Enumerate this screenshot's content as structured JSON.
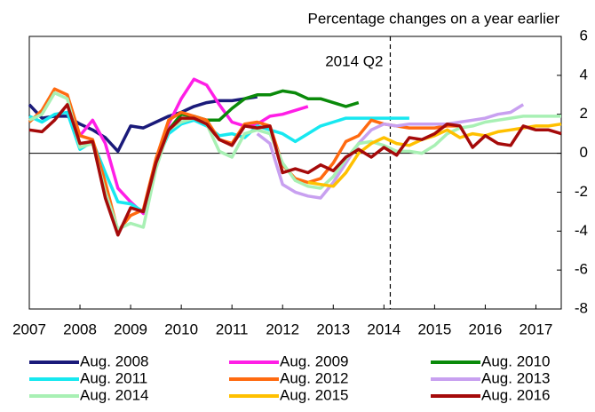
{
  "chart_data": {
    "type": "line",
    "subtitle": "Percentage changes on a year earlier",
    "annotation": "2014 Q2",
    "vline": 2014.125,
    "xlim": [
      2007,
      2017.5
    ],
    "xticks": [
      2007,
      2008,
      2009,
      2010,
      2011,
      2012,
      2013,
      2014,
      2015,
      2016,
      2017
    ],
    "ylim": [
      -8,
      6
    ],
    "yticks": [
      -8,
      -6,
      -4,
      -2,
      0,
      2,
      4,
      6
    ],
    "series": [
      {
        "name": "Aug. 2008",
        "color": "#1a1a7a",
        "x": [
          2007,
          2007.25,
          2007.5,
          2007.75,
          2008,
          2008.25,
          2008.5,
          2008.75,
          2009,
          2009.25,
          2009.5,
          2009.75,
          2010,
          2010.25,
          2010.5,
          2010.75,
          2011,
          2011.25,
          2011.5
        ],
        "values": [
          2.5,
          1.8,
          1.9,
          1.9,
          1.5,
          1.2,
          0.8,
          0.1,
          1.4,
          1.3,
          1.6,
          1.9,
          2.1,
          2.4,
          2.6,
          2.7,
          2.7,
          2.8,
          2.9
        ]
      },
      {
        "name": "Aug. 2009",
        "color": "#ff1ee6",
        "x": [
          2008,
          2008.25,
          2008.5,
          2008.75,
          2009,
          2009.25,
          2009.5,
          2009.75,
          2010,
          2010.25,
          2010.5,
          2010.75,
          2011,
          2011.25,
          2011.5,
          2011.75,
          2012,
          2012.25,
          2012.5
        ],
        "values": [
          0.9,
          1.7,
          0.5,
          -1.8,
          -2.5,
          -3.1,
          -0.6,
          1.5,
          2.8,
          3.8,
          3.5,
          2.5,
          1.6,
          1.4,
          1.5,
          1.9,
          2.0,
          2.2,
          2.4
        ]
      },
      {
        "name": "Aug. 2010",
        "color": "#0a8a0a",
        "x": [
          2009.5,
          2009.75,
          2010,
          2010.25,
          2010.5,
          2010.75,
          2011,
          2011.25,
          2011.5,
          2011.75,
          2012,
          2012.25,
          2012.5,
          2012.75,
          2013,
          2013.25,
          2013.5
        ],
        "values": [
          -0.3,
          1.2,
          2.0,
          1.9,
          1.7,
          1.7,
          2.3,
          2.8,
          3.0,
          3.0,
          3.2,
          3.1,
          2.8,
          2.8,
          2.6,
          2.4,
          2.6
        ]
      },
      {
        "name": "Aug. 2011",
        "color": "#17e8f0",
        "x": [
          2007,
          2007.25,
          2007.5,
          2007.75,
          2008,
          2008.25,
          2008.5,
          2008.75,
          2009,
          2009.25,
          2009.5,
          2009.75,
          2010,
          2010.25,
          2010.5,
          2010.75,
          2011,
          2011.25,
          2011.5,
          2011.75,
          2012,
          2012.25,
          2012.5,
          2012.75,
          2013,
          2013.25,
          2013.5,
          2013.75,
          2014,
          2014.25,
          2014.5
        ],
        "values": [
          1.9,
          1.6,
          2.0,
          2.1,
          0.2,
          0.6,
          -1.0,
          -2.5,
          -2.6,
          -3.0,
          -0.5,
          1.0,
          1.5,
          1.7,
          1.4,
          0.9,
          1.0,
          0.8,
          1.4,
          1.2,
          1.0,
          0.6,
          1.0,
          1.4,
          1.6,
          1.8,
          1.8,
          1.8,
          1.8,
          1.8,
          1.8
        ]
      },
      {
        "name": "Aug. 2012",
        "color": "#ff6a10",
        "x": [
          2007,
          2007.25,
          2007.5,
          2007.75,
          2008,
          2008.25,
          2008.5,
          2008.75,
          2009,
          2009.25,
          2009.5,
          2009.75,
          2010,
          2010.25,
          2010.5,
          2010.75,
          2011,
          2011.25,
          2011.5,
          2011.75,
          2012,
          2012.25,
          2012.5,
          2012.75,
          2013,
          2013.25,
          2013.5,
          2013.75,
          2014,
          2014.25,
          2014.5,
          2014.75,
          2015,
          2015.25,
          2015.5
        ],
        "values": [
          1.6,
          2.2,
          3.3,
          3.0,
          0.9,
          0.7,
          -1.5,
          -4.0,
          -3.2,
          -2.9,
          -0.3,
          1.7,
          2.1,
          1.9,
          1.7,
          0.7,
          0.5,
          1.5,
          1.6,
          1.4,
          -0.6,
          -1.3,
          -1.5,
          -1.3,
          -0.5,
          0.6,
          0.9,
          1.7,
          1.5,
          1.4,
          1.3,
          1.3,
          1.3,
          1.4,
          1.4
        ]
      },
      {
        "name": "Aug. 2013",
        "color": "#c8a0f0",
        "x": [
          2011.5,
          2011.75,
          2012,
          2012.25,
          2012.5,
          2012.75,
          2013,
          2013.25,
          2013.5,
          2013.75,
          2014,
          2014.25,
          2014.5,
          2014.75,
          2015,
          2015.25,
          2015.5,
          2015.75,
          2016,
          2016.25,
          2016.5,
          2016.75
        ],
        "values": [
          1.0,
          0.5,
          -1.6,
          -2.0,
          -2.2,
          -2.3,
          -1.5,
          -0.5,
          0.5,
          1.2,
          1.5,
          1.4,
          1.5,
          1.5,
          1.5,
          1.5,
          1.6,
          1.7,
          1.8,
          2.0,
          2.1,
          2.5
        ]
      },
      {
        "name": "Aug. 2014",
        "color": "#a8f0b4",
        "x": [
          2007,
          2007.25,
          2007.5,
          2007.75,
          2008,
          2008.25,
          2008.5,
          2008.75,
          2009,
          2009.25,
          2009.5,
          2009.75,
          2010,
          2010.25,
          2010.5,
          2010.75,
          2011,
          2011.25,
          2011.5,
          2011.75,
          2012,
          2012.25,
          2012.5,
          2012.75,
          2013,
          2013.25,
          2013.5,
          2013.75,
          2014,
          2014.25,
          2014.5,
          2014.75,
          2015,
          2015.25,
          2015.5,
          2015.75,
          2016,
          2016.25,
          2016.5,
          2016.75,
          2017,
          2017.25,
          2017.5
        ],
        "values": [
          1.7,
          2.0,
          3.1,
          2.8,
          0.3,
          0.5,
          -2.0,
          -3.9,
          -3.6,
          -3.8,
          -0.8,
          1.2,
          1.6,
          1.8,
          1.5,
          0.1,
          -0.2,
          1.0,
          1.2,
          1.0,
          -0.5,
          -1.4,
          -1.7,
          -1.8,
          -1.2,
          -0.3,
          0.5,
          0.6,
          0.4,
          0.1,
          0.1,
          0.0,
          0.4,
          1.0,
          1.3,
          1.4,
          1.6,
          1.7,
          1.8,
          1.9,
          1.9,
          1.9,
          1.9
        ]
      },
      {
        "name": "Aug. 2015",
        "color": "#ffc000",
        "x": [
          2012.5,
          2012.75,
          2013,
          2013.25,
          2013.5,
          2013.75,
          2014,
          2014.25,
          2014.5,
          2014.75,
          2015,
          2015.25,
          2015.5,
          2015.75,
          2016,
          2016.25,
          2016.5,
          2016.75,
          2017,
          2017.25,
          2017.5
        ],
        "values": [
          -1.5,
          -1.6,
          -1.7,
          -1.0,
          0.0,
          0.5,
          0.8,
          0.5,
          0.4,
          0.7,
          0.9,
          1.2,
          0.8,
          1.0,
          0.9,
          1.1,
          1.2,
          1.3,
          1.4,
          1.4,
          1.5
        ]
      },
      {
        "name": "Aug. 2016",
        "color": "#a50a0a",
        "x": [
          2007,
          2007.25,
          2007.5,
          2007.75,
          2008,
          2008.25,
          2008.5,
          2008.75,
          2009,
          2009.25,
          2009.5,
          2009.75,
          2010,
          2010.25,
          2010.5,
          2010.75,
          2011,
          2011.25,
          2011.5,
          2011.75,
          2012,
          2012.25,
          2012.5,
          2012.75,
          2013,
          2013.25,
          2013.5,
          2013.75,
          2014,
          2014.25,
          2014.5,
          2014.75,
          2015,
          2015.25,
          2015.5,
          2015.75,
          2016,
          2016.25,
          2016.5,
          2016.75,
          2017,
          2017.25,
          2017.5
        ],
        "values": [
          1.2,
          1.1,
          1.7,
          2.5,
          0.5,
          0.6,
          -2.3,
          -4.2,
          -2.8,
          -3.0,
          -0.5,
          1.2,
          1.8,
          1.8,
          1.5,
          0.7,
          0.4,
          1.4,
          1.3,
          1.4,
          -1.0,
          -0.8,
          -1.0,
          -0.6,
          -0.9,
          -0.2,
          0.2,
          -0.2,
          0.3,
          -0.1,
          0.8,
          0.7,
          1.0,
          1.5,
          1.4,
          0.3,
          0.9,
          0.5,
          0.4,
          1.4,
          1.2,
          1.2,
          1.0
        ]
      }
    ]
  }
}
